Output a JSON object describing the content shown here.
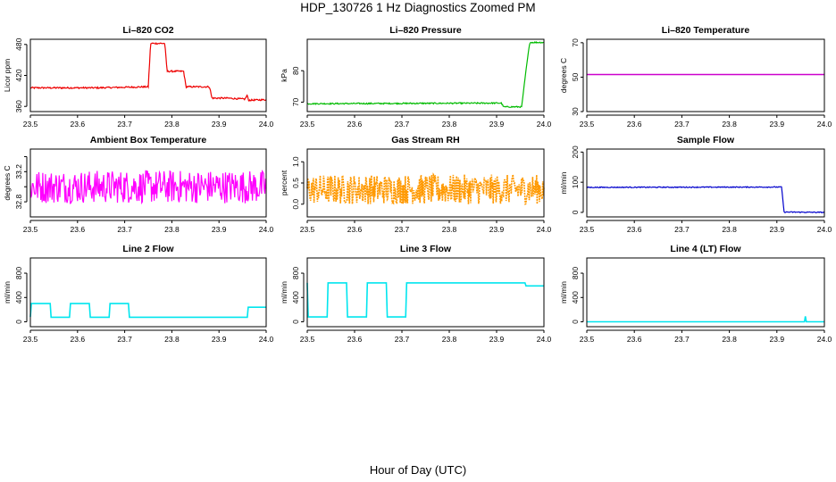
{
  "figure": {
    "title": "HDP_130726  1 Hz Diagnostics Zoomed PM",
    "xlabel": "Hour of Day (UTC)"
  },
  "chart_data": [
    {
      "type": "line",
      "title": "Li–820 CO2",
      "ylabel": "Licor ppm",
      "xlim": [
        23.5,
        24.0
      ],
      "ylim": [
        350,
        490
      ],
      "xticks": [
        "23.5",
        "23.6",
        "23.7",
        "23.8",
        "23.9",
        "24.0"
      ],
      "yticks": [
        360,
        420,
        480
      ],
      "y_tick_labels": [
        "360",
        "420",
        "480"
      ],
      "color": "#ee0000",
      "noise": 1.5,
      "series": [
        {
          "values": [
            [
              23.5,
              396
            ],
            [
              23.64,
              396
            ],
            [
              23.75,
              398
            ],
            [
              23.755,
              482
            ],
            [
              23.785,
              482
            ],
            [
              23.79,
              428
            ],
            [
              23.825,
              428
            ],
            [
              23.83,
              398
            ],
            [
              23.88,
              398
            ],
            [
              23.885,
              376
            ],
            [
              23.92,
              376
            ],
            [
              23.955,
              374
            ],
            [
              23.96,
              382
            ],
            [
              23.962,
              372
            ],
            [
              24.0,
              373
            ]
          ]
        }
      ]
    },
    {
      "type": "line",
      "title": "Li–820 Pressure",
      "ylabel": "kPa",
      "xlim": [
        23.5,
        24.0
      ],
      "ylim": [
        67,
        90
      ],
      "xticks": [
        "23.5",
        "23.6",
        "23.7",
        "23.8",
        "23.9",
        "24.0"
      ],
      "yticks": [
        70,
        80
      ],
      "y_tick_labels": [
        "70",
        "80"
      ],
      "color": "#00bb00",
      "noise": 0.2,
      "series": [
        {
          "values": [
            [
              23.5,
              69.5
            ],
            [
              23.91,
              69.7
            ],
            [
              23.915,
              68.5
            ],
            [
              23.953,
              68.5
            ],
            [
              23.962,
              80
            ],
            [
              23.97,
              89
            ],
            [
              24.0,
              89
            ]
          ]
        }
      ]
    },
    {
      "type": "line",
      "title": "Li–820 Temperature",
      "ylabel": "degrees C",
      "xlim": [
        23.5,
        24.0
      ],
      "ylim": [
        30,
        72
      ],
      "xticks": [
        "23.5",
        "23.6",
        "23.7",
        "23.8",
        "23.9",
        "24.0"
      ],
      "yticks": [
        30,
        50,
        70
      ],
      "y_tick_labels": [
        "30",
        "50",
        "70"
      ],
      "color": "#cc00cc",
      "noise": 0,
      "series": [
        {
          "values": [
            [
              23.5,
              51.5
            ],
            [
              24.0,
              51.5
            ]
          ]
        }
      ]
    },
    {
      "type": "line",
      "title": "Ambient Box Temperature",
      "ylabel": "degrees C",
      "xlim": [
        23.5,
        24.0
      ],
      "ylim": [
        32.6,
        33.5
      ],
      "xticks": [
        "23.5",
        "23.6",
        "23.7",
        "23.8",
        "23.9",
        "24.0"
      ],
      "yticks": [
        32.8,
        33.0,
        33.2,
        33.4
      ],
      "y_tick_labels": [
        "32.8",
        "",
        "33.2",
        ""
      ],
      "color": "#ff00ff",
      "noise": 0.22,
      "series": [
        {
          "values": [
            [
              23.5,
              33.0
            ],
            [
              24.0,
              33.0
            ]
          ]
        }
      ]
    },
    {
      "type": "line",
      "title": "Gas Stream RH",
      "ylabel": "percent",
      "xlim": [
        23.5,
        24.0
      ],
      "ylim": [
        -0.3,
        1.3
      ],
      "xticks": [
        "23.5",
        "23.6",
        "23.7",
        "23.8",
        "23.9",
        "24.0"
      ],
      "yticks": [
        0.0,
        0.5,
        1.0
      ],
      "y_tick_labels": [
        "0.0",
        "0.5",
        "1.0"
      ],
      "color": "#ff9900",
      "noise": 0.35,
      "dense": true,
      "series": [
        {
          "values": [
            [
              23.5,
              0.35
            ],
            [
              24.0,
              0.35
            ]
          ]
        }
      ]
    },
    {
      "type": "line",
      "title": "Sample Flow",
      "ylabel": "ml/min",
      "xlim": [
        23.5,
        24.0
      ],
      "ylim": [
        -15,
        210
      ],
      "xticks": [
        "23.5",
        "23.6",
        "23.7",
        "23.8",
        "23.9",
        "24.0"
      ],
      "yticks": [
        0,
        100,
        200
      ],
      "y_tick_labels": [
        "0",
        "100",
        "200"
      ],
      "color": "#0000cc",
      "noise": 1.5,
      "series": [
        {
          "values": [
            [
              23.5,
              83
            ],
            [
              23.91,
              84
            ],
            [
              23.915,
              1
            ],
            [
              24.0,
              0
            ]
          ]
        }
      ]
    },
    {
      "type": "line",
      "title": "Line 2 Flow",
      "ylabel": "ml/min",
      "xlim": [
        23.5,
        24.0
      ],
      "ylim": [
        -80,
        1050
      ],
      "xticks": [
        "23.5",
        "23.6",
        "23.7",
        "23.8",
        "23.9",
        "24.0"
      ],
      "yticks": [
        0,
        400,
        800
      ],
      "y_tick_labels": [
        "0",
        "400",
        "800"
      ],
      "color": "#00e5ee",
      "noise": 0,
      "series": [
        {
          "values": [
            [
              23.5,
              80
            ],
            [
              23.502,
              300
            ],
            [
              23.542,
              300
            ],
            [
              23.544,
              75
            ],
            [
              23.583,
              75
            ],
            [
              23.585,
              300
            ],
            [
              23.625,
              300
            ],
            [
              23.627,
              75
            ],
            [
              23.667,
              75
            ],
            [
              23.669,
              300
            ],
            [
              23.708,
              300
            ],
            [
              23.71,
              75
            ],
            [
              23.96,
              75
            ],
            [
              23.962,
              240
            ],
            [
              24.0,
              240
            ]
          ]
        }
      ]
    },
    {
      "type": "line",
      "title": "Line 3 Flow",
      "ylabel": "ml/min",
      "xlim": [
        23.5,
        24.0
      ],
      "ylim": [
        -80,
        1050
      ],
      "xticks": [
        "23.5",
        "23.6",
        "23.7",
        "23.8",
        "23.9",
        "24.0"
      ],
      "yticks": [
        0,
        400,
        800
      ],
      "y_tick_labels": [
        "0",
        "400",
        "800"
      ],
      "color": "#00e5ee",
      "noise": 0,
      "series": [
        {
          "values": [
            [
              23.5,
              640
            ],
            [
              23.502,
              80
            ],
            [
              23.542,
              80
            ],
            [
              23.544,
              640
            ],
            [
              23.583,
              640
            ],
            [
              23.585,
              80
            ],
            [
              23.625,
              80
            ],
            [
              23.627,
              640
            ],
            [
              23.667,
              640
            ],
            [
              23.669,
              80
            ],
            [
              23.708,
              80
            ],
            [
              23.71,
              640
            ],
            [
              23.96,
              640
            ],
            [
              23.962,
              590
            ],
            [
              24.0,
              590
            ]
          ]
        }
      ]
    },
    {
      "type": "line",
      "title": "Line 4 (LT) Flow",
      "ylabel": "ml/min",
      "xlim": [
        23.5,
        24.0
      ],
      "ylim": [
        -80,
        1050
      ],
      "xticks": [
        "23.5",
        "23.6",
        "23.7",
        "23.8",
        "23.9",
        "24.0"
      ],
      "yticks": [
        0,
        400,
        800
      ],
      "y_tick_labels": [
        "0",
        "400",
        "800"
      ],
      "color": "#00e5ee",
      "noise": 0,
      "series": [
        {
          "values": [
            [
              23.5,
              0
            ],
            [
              23.958,
              0
            ],
            [
              23.96,
              90
            ],
            [
              23.962,
              0
            ],
            [
              24.0,
              0
            ]
          ]
        }
      ]
    }
  ]
}
